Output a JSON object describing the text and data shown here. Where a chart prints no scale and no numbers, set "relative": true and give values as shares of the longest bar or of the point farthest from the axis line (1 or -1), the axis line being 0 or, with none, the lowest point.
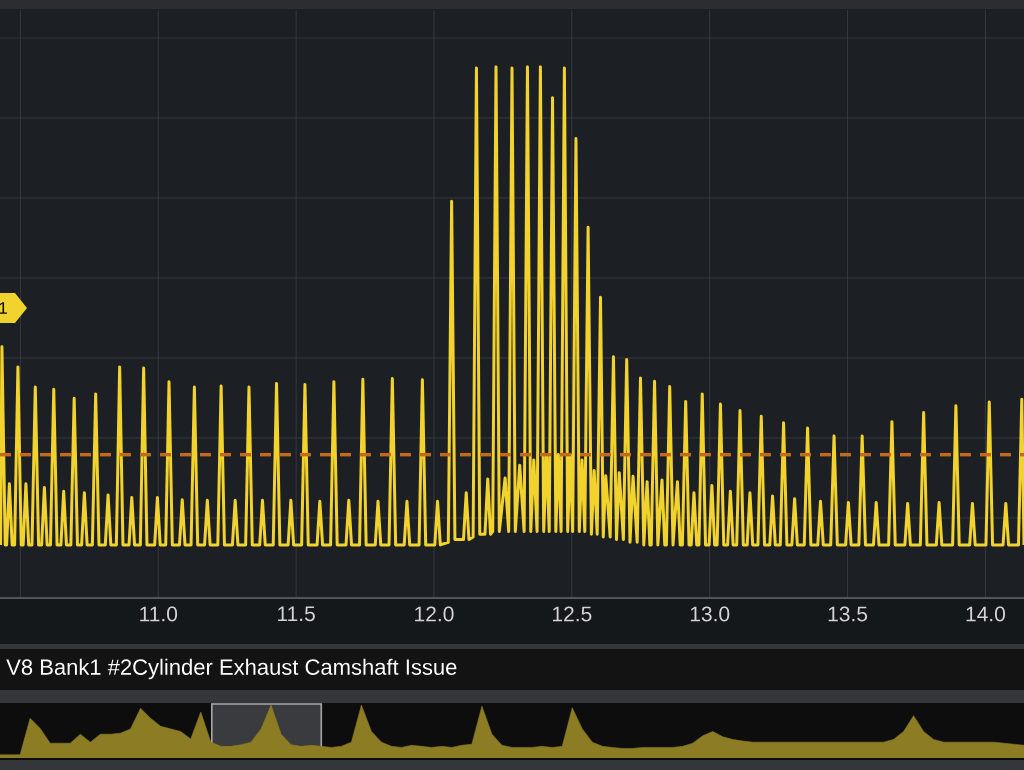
{
  "chart_data": [
    {
      "type": "line",
      "title": "V8 Bank1 #2Cylinder Exhaust Camshaft Issue",
      "relative": true,
      "color": "#f2d22c",
      "x": [
        10.428,
        10.433,
        10.445,
        10.45,
        10.46,
        10.47,
        10.479,
        10.491,
        10.503,
        10.51,
        10.52,
        10.53,
        10.542,
        10.554,
        10.566,
        10.577,
        10.587,
        10.597,
        10.609,
        10.621,
        10.633,
        10.647,
        10.657,
        10.667,
        10.683,
        10.695,
        10.707,
        10.722,
        10.732,
        10.742,
        10.761,
        10.773,
        10.785,
        10.808,
        10.818,
        10.828,
        10.848,
        10.86,
        10.872,
        10.894,
        10.904,
        10.914,
        10.935,
        10.947,
        10.959,
        10.987,
        10.997,
        11.007,
        11.027,
        11.039,
        11.051,
        11.077,
        11.087,
        11.097,
        11.119,
        11.131,
        11.143,
        11.168,
        11.178,
        11.188,
        11.216,
        11.228,
        11.24,
        11.269,
        11.279,
        11.289,
        11.317,
        11.329,
        11.341,
        11.368,
        11.378,
        11.388,
        11.417,
        11.429,
        11.441,
        11.471,
        11.481,
        11.491,
        11.52,
        11.532,
        11.544,
        11.576,
        11.586,
        11.596,
        11.625,
        11.637,
        11.649,
        11.681,
        11.691,
        11.701,
        11.73,
        11.742,
        11.754,
        11.787,
        11.797,
        11.807,
        11.837,
        11.849,
        11.861,
        11.892,
        11.902,
        11.912,
        11.946,
        11.958,
        11.97,
        12.003,
        12.013,
        12.023,
        12.052,
        12.064,
        12.076,
        12.107,
        12.117,
        12.127,
        12.142,
        12.154,
        12.166,
        12.185,
        12.195,
        12.205,
        12.213,
        12.225,
        12.237,
        12.258,
        12.271,
        12.283,
        12.295,
        12.311,
        12.327,
        12.339,
        12.351,
        12.362,
        12.374,
        12.386,
        12.398,
        12.408,
        12.418,
        12.43,
        12.442,
        12.451,
        12.461,
        12.473,
        12.485,
        12.494,
        12.503,
        12.515,
        12.527,
        12.537,
        12.547,
        12.559,
        12.571,
        12.581,
        12.592,
        12.604,
        12.614,
        12.623,
        12.639,
        12.651,
        12.662,
        12.672,
        12.687,
        12.699,
        12.711,
        12.722,
        12.737,
        12.749,
        12.761,
        12.773,
        12.783,
        12.788,
        12.8,
        12.812,
        12.827,
        12.837,
        12.843,
        12.855,
        12.867,
        12.883,
        12.893,
        12.901,
        12.913,
        12.925,
        12.933,
        12.943,
        12.953,
        12.961,
        12.973,
        12.985,
        12.998,
        13.008,
        13.018,
        13.027,
        13.039,
        13.051,
        13.065,
        13.075,
        13.085,
        13.098,
        13.11,
        13.122,
        13.136,
        13.146,
        13.156,
        13.175,
        13.187,
        13.199,
        13.218,
        13.228,
        13.238,
        13.256,
        13.268,
        13.28,
        13.298,
        13.308,
        13.318,
        13.343,
        13.355,
        13.367,
        13.392,
        13.402,
        13.412,
        13.439,
        13.451,
        13.463,
        13.493,
        13.503,
        13.513,
        13.541,
        13.553,
        13.565,
        13.594,
        13.604,
        13.614,
        13.649,
        13.661,
        13.673,
        13.708,
        13.718,
        13.728,
        13.764,
        13.776,
        13.788,
        13.822,
        13.832,
        13.842,
        13.881,
        13.893,
        13.905,
        13.943,
        13.953,
        13.963,
        14.002,
        14.014,
        14.026,
        14.064,
        14.074,
        14.084,
        14.12,
        14.132,
        14.14
      ],
      "values": [
        0.1,
        0.473,
        0.1,
        0.1,
        0.215,
        0.1,
        0.1,
        0.435,
        0.1,
        0.1,
        0.215,
        0.1,
        0.1,
        0.397,
        0.1,
        0.1,
        0.208,
        0.1,
        0.1,
        0.393,
        0.1,
        0.1,
        0.201,
        0.1,
        0.1,
        0.376,
        0.1,
        0.1,
        0.198,
        0.1,
        0.1,
        0.384,
        0.1,
        0.1,
        0.194,
        0.1,
        0.1,
        0.435,
        0.1,
        0.1,
        0.189,
        0.1,
        0.1,
        0.433,
        0.1,
        0.1,
        0.189,
        0.1,
        0.1,
        0.407,
        0.1,
        0.1,
        0.185,
        0.1,
        0.1,
        0.397,
        0.1,
        0.1,
        0.184,
        0.1,
        0.1,
        0.399,
        0.1,
        0.1,
        0.184,
        0.1,
        0.1,
        0.397,
        0.1,
        0.1,
        0.184,
        0.1,
        0.1,
        0.404,
        0.1,
        0.1,
        0.184,
        0.1,
        0.1,
        0.402,
        0.1,
        0.1,
        0.182,
        0.1,
        0.1,
        0.407,
        0.1,
        0.1,
        0.184,
        0.1,
        0.1,
        0.412,
        0.1,
        0.1,
        0.182,
        0.1,
        0.1,
        0.413,
        0.1,
        0.1,
        0.182,
        0.1,
        0.1,
        0.411,
        0.1,
        0.1,
        0.182,
        0.1,
        0.105,
        0.747,
        0.11,
        0.11,
        0.198,
        0.11,
        0.115,
        0.998,
        0.12,
        0.12,
        0.224,
        0.12,
        0.125,
        1.0,
        0.125,
        0.226,
        0.125,
        0.998,
        0.125,
        0.25,
        0.125,
        1.0,
        0.125,
        0.26,
        0.125,
        1.0,
        0.125,
        0.27,
        0.125,
        0.942,
        0.125,
        0.27,
        0.125,
        0.998,
        0.125,
        0.27,
        0.125,
        0.865,
        0.125,
        0.26,
        0.125,
        0.698,
        0.12,
        0.24,
        0.12,
        0.566,
        0.115,
        0.23,
        0.115,
        0.454,
        0.11,
        0.236,
        0.11,
        0.449,
        0.105,
        0.229,
        0.105,
        0.414,
        0.1,
        0.219,
        0.1,
        0.1,
        0.408,
        0.1,
        0.222,
        0.1,
        0.1,
        0.398,
        0.1,
        0.219,
        0.1,
        0.1,
        0.37,
        0.1,
        0.1,
        0.198,
        0.1,
        0.1,
        0.384,
        0.1,
        0.1,
        0.212,
        0.1,
        0.1,
        0.365,
        0.1,
        0.1,
        0.201,
        0.1,
        0.1,
        0.353,
        0.1,
        0.1,
        0.198,
        0.1,
        0.1,
        0.342,
        0.1,
        0.1,
        0.192,
        0.1,
        0.1,
        0.33,
        0.1,
        0.1,
        0.187,
        0.1,
        0.1,
        0.32,
        0.1,
        0.1,
        0.182,
        0.1,
        0.1,
        0.305,
        0.1,
        0.1,
        0.18,
        0.1,
        0.1,
        0.305,
        0.1,
        0.1,
        0.18,
        0.1,
        0.1,
        0.332,
        0.1,
        0.1,
        0.178,
        0.1,
        0.1,
        0.349,
        0.1,
        0.1,
        0.18,
        0.1,
        0.1,
        0.362,
        0.1,
        0.1,
        0.178,
        0.1,
        0.1,
        0.369,
        0.1,
        0.1,
        0.178,
        0.1,
        0.1,
        0.374,
        0.1
      ],
      "xlim": [
        10.426,
        14.14
      ],
      "xticks": [
        {
          "value": 10.5,
          "label": null
        },
        {
          "value": 11,
          "label": "11.0"
        },
        11.5,
        {
          "value": 12,
          "label": "12.0"
        },
        12.5,
        {
          "value": 13,
          "label": "13.0"
        },
        13.5,
        {
          "value": 14,
          "label": "14.0"
        }
      ],
      "grid": true,
      "ref_lines": [
        {
          "axis": "y",
          "value": 0.27,
          "color": "#c46a1c",
          "line_style": "dashed"
        }
      ],
      "annotations": [
        "1"
      ]
    },
    {
      "type": "area",
      "relative": true,
      "color": "#8c7c24",
      "categories": [
        null,
        null,
        null,
        null,
        null,
        null,
        null,
        null,
        null,
        null,
        null,
        null,
        null,
        null,
        null,
        null,
        null,
        null,
        null,
        null,
        null,
        null,
        null,
        null,
        null,
        null,
        null,
        null,
        null,
        null,
        null,
        null,
        null,
        null,
        null,
        null,
        null,
        null,
        null,
        null,
        null,
        null,
        null,
        null,
        null,
        null,
        null,
        null,
        null,
        null,
        null,
        null,
        null,
        null,
        null,
        null,
        null,
        null,
        null,
        null,
        null,
        null,
        null,
        null,
        null,
        null,
        null,
        null,
        null,
        null,
        null,
        null,
        null,
        null,
        null,
        null,
        null,
        null,
        null,
        null,
        null,
        null,
        null,
        null,
        null,
        null,
        null,
        null,
        null,
        null,
        null,
        null,
        null,
        null,
        null,
        null,
        null,
        null,
        null,
        null,
        null,
        null,
        null
      ],
      "values": [
        0.06,
        0.06,
        0.06,
        0.75,
        0.56,
        0.28,
        0.28,
        0.28,
        0.45,
        0.3,
        0.45,
        0.45,
        0.47,
        0.55,
        0.94,
        0.75,
        0.6,
        0.55,
        0.5,
        0.36,
        0.87,
        0.3,
        0.22,
        0.22,
        0.25,
        0.3,
        0.55,
        1.0,
        0.45,
        0.25,
        0.22,
        0.24,
        0.22,
        0.2,
        0.22,
        0.3,
        1.0,
        0.5,
        0.3,
        0.22,
        0.2,
        0.24,
        0.22,
        0.2,
        0.22,
        0.2,
        0.24,
        0.26,
        0.98,
        0.45,
        0.24,
        0.2,
        0.2,
        0.2,
        0.22,
        0.2,
        0.22,
        0.95,
        0.55,
        0.3,
        0.22,
        0.2,
        0.18,
        0.18,
        0.2,
        0.2,
        0.2,
        0.2,
        0.22,
        0.28,
        0.42,
        0.5,
        0.4,
        0.35,
        0.32,
        0.3,
        0.3,
        0.3,
        0.3,
        0.3,
        0.3,
        0.3,
        0.3,
        0.3,
        0.3,
        0.3,
        0.3,
        0.3,
        0.3,
        0.35,
        0.5,
        0.8,
        0.5,
        0.35,
        0.3,
        0.3,
        0.3,
        0.3,
        0.3,
        0.3,
        0.28,
        0.26,
        0.24
      ]
    }
  ]
}
